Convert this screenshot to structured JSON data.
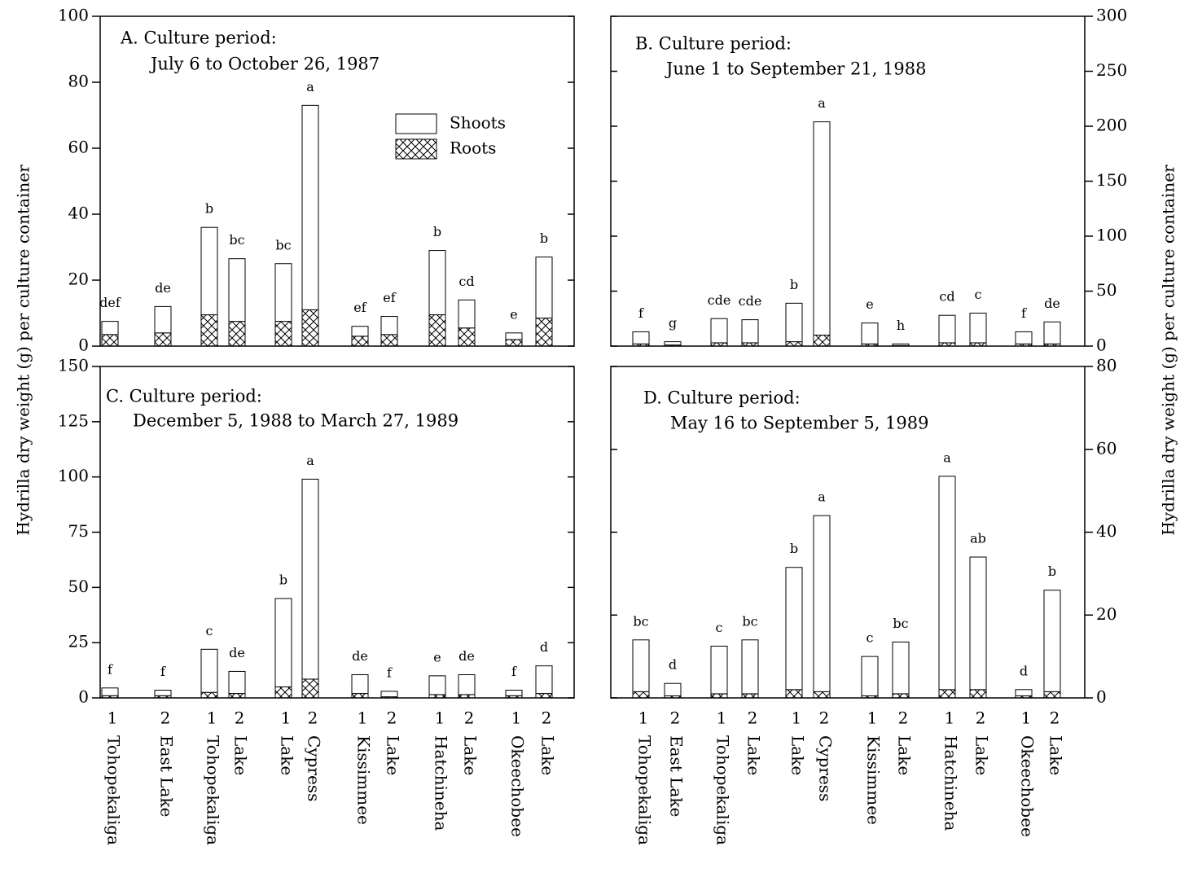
{
  "chart_data": [
    {
      "type": "bar",
      "title": [
        "A. Culture period:",
        "July 6 to October 26, 1987"
      ],
      "ylabel": "Hydrilla dry weight (g) per culture container",
      "ylim": [
        0,
        100
      ],
      "yticks": [
        0,
        20,
        40,
        60,
        80,
        100
      ],
      "axis_side": "left",
      "series": [
        {
          "name": "Roots",
          "pattern": "hatch",
          "values": [
            3.5,
            4,
            9.5,
            7.5,
            7.5,
            11,
            3,
            3.5,
            9.5,
            5.5,
            2,
            8.5
          ]
        },
        {
          "name": "Shoots",
          "pattern": "plain",
          "values": [
            4,
            8,
            26.5,
            19,
            17.5,
            62,
            3,
            5.5,
            19.5,
            8.5,
            2,
            18.5
          ]
        }
      ],
      "annotations": [
        "def",
        "de",
        "b",
        "bc",
        "bc",
        "a",
        "ef",
        "ef",
        "b",
        "cd",
        "e",
        "b"
      ]
    },
    {
      "type": "bar",
      "title": [
        "B. Culture period:",
        "June 1 to September 21, 1988"
      ],
      "ylabel": "Hydrilla dry weight (g) per culture container",
      "ylim": [
        0,
        300
      ],
      "yticks": [
        0,
        50,
        100,
        150,
        200,
        250,
        300
      ],
      "axis_side": "right",
      "series": [
        {
          "pattern": "hatch",
          "values": [
            2,
            1,
            3,
            3,
            4,
            10,
            2,
            0.5,
            3,
            3,
            2,
            2
          ]
        },
        {
          "pattern": "plain",
          "values": [
            11,
            3,
            22,
            21,
            35,
            194,
            19,
            1.5,
            25,
            27,
            11,
            20
          ]
        }
      ],
      "annotations": [
        "f",
        "g",
        "cde",
        "cde",
        "b",
        "a",
        "e",
        "h",
        "cd",
        "c",
        "f",
        "de"
      ]
    },
    {
      "type": "bar",
      "title": [
        "C. Culture period:",
        "December 5, 1988 to March 27, 1989"
      ],
      "ylim": [
        0,
        150
      ],
      "yticks": [
        0,
        25,
        50,
        75,
        100,
        125,
        150
      ],
      "axis_side": "left",
      "categories": [
        "1",
        "2",
        "1",
        "2",
        "1",
        "2",
        "1",
        "2",
        "1",
        "2",
        "1",
        "2"
      ],
      "x_labels": [
        "Tohopekaliga",
        "East Lake",
        "Tohopekaliga",
        "Lake",
        "Lake",
        "Cypress",
        "Kissimmee",
        "Lake",
        "Hatchineha",
        "Lake",
        "Okeechobee",
        "Lake"
      ],
      "series": [
        {
          "pattern": "hatch",
          "values": [
            1,
            1,
            2.5,
            2,
            5,
            8.5,
            2,
            0.5,
            1.5,
            1.5,
            1,
            2
          ]
        },
        {
          "pattern": "plain",
          "values": [
            3.5,
            2.5,
            19.5,
            10,
            40,
            90.5,
            8.5,
            2.5,
            8.5,
            9,
            2.5,
            12.5
          ]
        }
      ],
      "annotations": [
        "f",
        "f",
        "c",
        "de",
        "b",
        "a",
        "de",
        "f",
        "e",
        "de",
        "f",
        "d"
      ]
    },
    {
      "type": "bar",
      "title": [
        "D. Culture period:",
        "May 16 to September 5, 1989"
      ],
      "ylim": [
        0,
        80
      ],
      "yticks": [
        0,
        20,
        40,
        60,
        80
      ],
      "axis_side": "right",
      "categories": [
        "1",
        "2",
        "1",
        "2",
        "1",
        "2",
        "1",
        "2",
        "1",
        "2",
        "1",
        "2"
      ],
      "x_labels": [
        "Tohopekaliga",
        "East Lake",
        "Tohopekaliga",
        "Lake",
        "Lake",
        "Cypress",
        "Kissimmee",
        "Lake",
        "Hatchineha",
        "Lake",
        "Okeechobee",
        "Lake"
      ],
      "series": [
        {
          "pattern": "hatch",
          "values": [
            1.5,
            0.5,
            1,
            1,
            2,
            1.5,
            0.5,
            1,
            2,
            2,
            0.5,
            1.5
          ]
        },
        {
          "pattern": "plain",
          "values": [
            12.5,
            3,
            11.5,
            13,
            29.5,
            42.5,
            9.5,
            12.5,
            51.5,
            32,
            1.5,
            24.5
          ]
        }
      ],
      "annotations": [
        "bc",
        "d",
        "c",
        "bc",
        "b",
        "a",
        "c",
        "bc",
        "a",
        "ab",
        "d",
        "b"
      ]
    }
  ]
}
